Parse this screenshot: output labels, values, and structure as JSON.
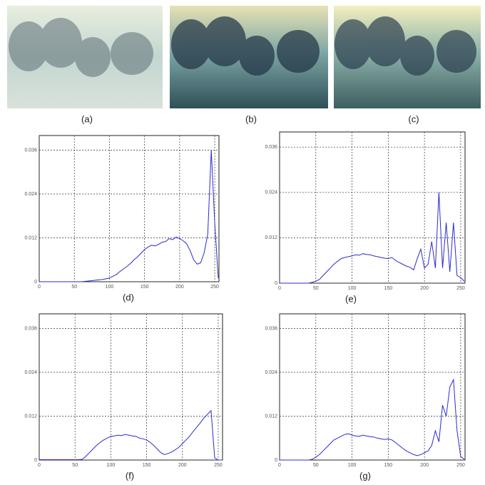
{
  "image_captions": [
    "(a)",
    "(b)",
    "(c)"
  ],
  "chart_data": [
    {
      "type": "line",
      "title": "(d)",
      "color": "#2b2bd0",
      "grid": true,
      "xlim": [
        0,
        256
      ],
      "ylim": [
        0,
        0.04
      ],
      "xticks": [
        0,
        50,
        100,
        150,
        200,
        250
      ],
      "yticks": [
        0,
        0.012,
        0.024,
        0.036
      ],
      "x": [
        0,
        5,
        10,
        15,
        20,
        25,
        30,
        35,
        40,
        45,
        50,
        55,
        60,
        65,
        70,
        75,
        80,
        85,
        90,
        95,
        100,
        105,
        110,
        115,
        120,
        125,
        130,
        135,
        140,
        145,
        150,
        155,
        160,
        165,
        170,
        175,
        180,
        185,
        190,
        195,
        200,
        205,
        210,
        215,
        220,
        225,
        230,
        235,
        240,
        245,
        250,
        255
      ],
      "values": [
        0,
        0,
        0,
        0,
        0,
        0,
        0,
        0,
        0,
        0,
        0,
        0,
        0,
        0.0001,
        0.0002,
        0.0003,
        0.0004,
        0.0005,
        0.0006,
        0.0008,
        0.001,
        0.0015,
        0.002,
        0.0028,
        0.0035,
        0.0042,
        0.005,
        0.006,
        0.0068,
        0.0078,
        0.0088,
        0.0095,
        0.01,
        0.0098,
        0.0102,
        0.0108,
        0.011,
        0.0118,
        0.0115,
        0.0122,
        0.0118,
        0.0112,
        0.0104,
        0.0085,
        0.006,
        0.0048,
        0.0052,
        0.008,
        0.013,
        0.036,
        0.016,
        0.001
      ]
    },
    {
      "type": "line",
      "title": "(e)",
      "color": "#2b2bd0",
      "grid": true,
      "xlim": [
        0,
        256
      ],
      "ylim": [
        0,
        0.04
      ],
      "xticks": [
        0,
        50,
        100,
        150,
        200,
        250
      ],
      "yticks": [
        0,
        0.012,
        0.024,
        0.036
      ],
      "x": [
        0,
        5,
        10,
        15,
        20,
        25,
        30,
        35,
        40,
        45,
        50,
        55,
        60,
        65,
        70,
        75,
        80,
        85,
        90,
        95,
        100,
        105,
        110,
        115,
        120,
        125,
        130,
        135,
        140,
        145,
        150,
        155,
        160,
        165,
        170,
        175,
        180,
        185,
        190,
        195,
        200,
        205,
        210,
        215,
        220,
        225,
        230,
        235,
        240,
        245,
        250,
        255
      ],
      "values": [
        0,
        0,
        0,
        0,
        0,
        0,
        0,
        0,
        0,
        0.0002,
        0.0005,
        0.001,
        0.002,
        0.003,
        0.004,
        0.005,
        0.0058,
        0.0065,
        0.0068,
        0.007,
        0.0072,
        0.0075,
        0.0074,
        0.0078,
        0.0076,
        0.0075,
        0.0072,
        0.007,
        0.0068,
        0.0066,
        0.0065,
        0.0068,
        0.006,
        0.0055,
        0.005,
        0.0045,
        0.0042,
        0.0035,
        0.0065,
        0.009,
        0.004,
        0.005,
        0.011,
        0.004,
        0.024,
        0.004,
        0.016,
        0.003,
        0.016,
        0.002,
        0.0015,
        0.0005
      ]
    },
    {
      "type": "line",
      "title": "(f)",
      "color": "#2b2bd0",
      "grid": true,
      "xlim": [
        0,
        256
      ],
      "ylim": [
        0,
        0.04
      ],
      "xticks": [
        0,
        50,
        100,
        150,
        200,
        250
      ],
      "yticks": [
        0,
        0.012,
        0.024,
        0.036
      ],
      "x": [
        0,
        5,
        10,
        15,
        20,
        25,
        30,
        35,
        40,
        45,
        50,
        55,
        60,
        65,
        70,
        75,
        80,
        85,
        90,
        95,
        100,
        105,
        110,
        115,
        120,
        125,
        130,
        135,
        140,
        145,
        150,
        155,
        160,
        165,
        170,
        175,
        180,
        185,
        190,
        195,
        200,
        205,
        210,
        215,
        220,
        225,
        230,
        235,
        240,
        245,
        250,
        255
      ],
      "values": [
        0.0001,
        0.0001,
        0.0001,
        0.0001,
        0.0001,
        0.0001,
        0.0001,
        0.0001,
        0.0001,
        0.0001,
        0.0001,
        0.0001,
        0.0002,
        0.001,
        0.002,
        0.003,
        0.004,
        0.0048,
        0.0055,
        0.006,
        0.0065,
        0.0066,
        0.0068,
        0.0067,
        0.007,
        0.0068,
        0.0066,
        0.0065,
        0.006,
        0.0058,
        0.0055,
        0.0048,
        0.004,
        0.003,
        0.002,
        0.0015,
        0.0018,
        0.0022,
        0.0028,
        0.0035,
        0.0045,
        0.0055,
        0.0065,
        0.0078,
        0.009,
        0.0102,
        0.0115,
        0.0125,
        0.0135,
        0.0006,
        0,
        0
      ]
    },
    {
      "type": "line",
      "title": "(g)",
      "color": "#2b2bd0",
      "grid": true,
      "xlim": [
        0,
        256
      ],
      "ylim": [
        0,
        0.04
      ],
      "xticks": [
        0,
        50,
        100,
        150,
        200,
        250
      ],
      "yticks": [
        0,
        0.012,
        0.024,
        0.036
      ],
      "x": [
        0,
        5,
        10,
        15,
        20,
        25,
        30,
        35,
        40,
        45,
        50,
        55,
        60,
        65,
        70,
        75,
        80,
        85,
        90,
        95,
        100,
        105,
        110,
        115,
        120,
        125,
        130,
        135,
        140,
        145,
        150,
        155,
        160,
        165,
        170,
        175,
        180,
        185,
        190,
        195,
        200,
        205,
        210,
        215,
        220,
        225,
        230,
        235,
        240,
        245,
        250,
        255
      ],
      "values": [
        0,
        0,
        0,
        0,
        0,
        0,
        0,
        0,
        0,
        0.0002,
        0.0008,
        0.0015,
        0.0025,
        0.0035,
        0.0045,
        0.0055,
        0.006,
        0.0065,
        0.007,
        0.0072,
        0.0068,
        0.0066,
        0.0065,
        0.0068,
        0.0066,
        0.0064,
        0.0063,
        0.006,
        0.0058,
        0.0056,
        0.0058,
        0.0055,
        0.0048,
        0.004,
        0.0032,
        0.0025,
        0.002,
        0.0015,
        0.0012,
        0.0015,
        0.002,
        0.0025,
        0.004,
        0.008,
        0.005,
        0.015,
        0.012,
        0.02,
        0.022,
        0.008,
        0.001,
        0.0002
      ]
    }
  ]
}
